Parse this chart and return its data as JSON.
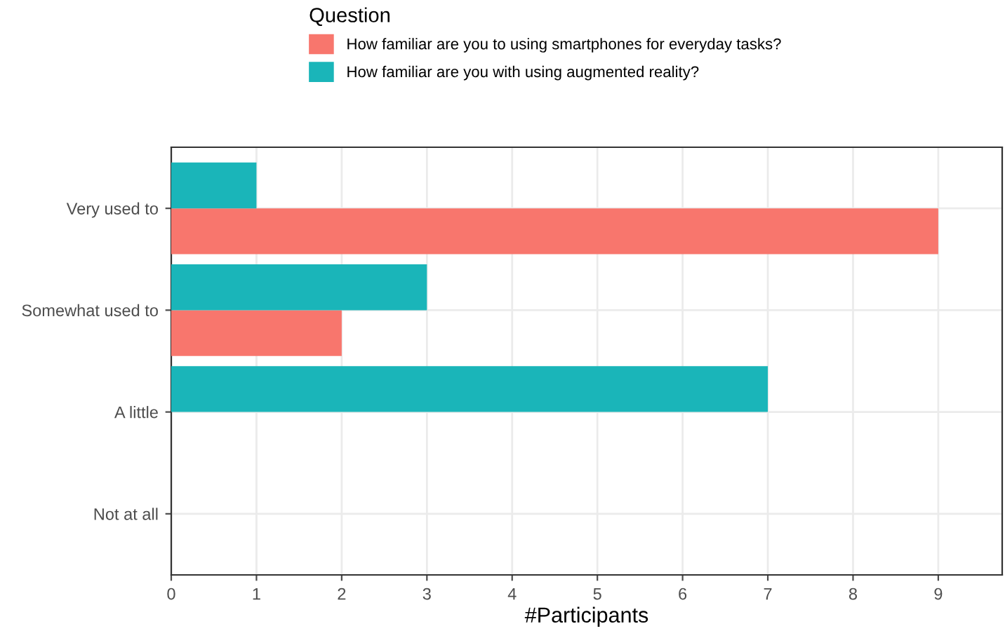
{
  "chart_data": {
    "type": "bar",
    "orientation": "horizontal",
    "xlabel": "#Participants",
    "legend_title": "Question",
    "legend": "top",
    "categories": [
      "Very used to",
      "Somewhat used to",
      "A little",
      "Not at all"
    ],
    "series": [
      {
        "name": "How familiar are you to using smartphones for everyday tasks?",
        "color": "#f8766d",
        "values": [
          9,
          2,
          0,
          0
        ]
      },
      {
        "name": "How familiar are you with using augmented reality?",
        "color": "#1ab5b9",
        "values": [
          1,
          3,
          7,
          0
        ]
      }
    ],
    "xlim": [
      0,
      9.75
    ],
    "xticks": [
      0,
      1,
      2,
      3,
      4,
      5,
      6,
      7,
      8,
      9
    ],
    "grid": true
  }
}
